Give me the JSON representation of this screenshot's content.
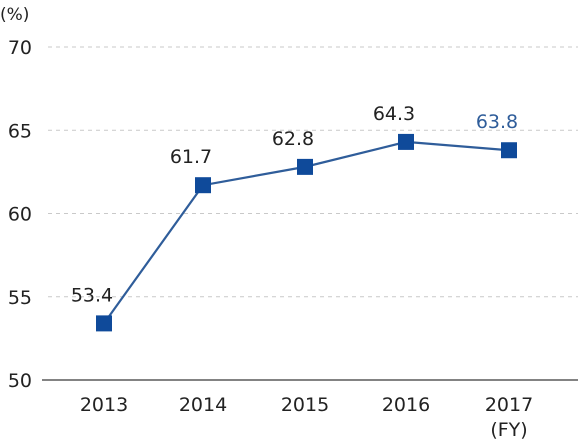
{
  "chart_data": {
    "type": "line",
    "title": "",
    "xlabel": "(FY)",
    "ylabel": "(%)",
    "categories": [
      "2013",
      "2014",
      "2015",
      "2016",
      "2017"
    ],
    "series": [
      {
        "values": [
          53.4,
          61.7,
          62.8,
          64.3,
          63.8
        ],
        "labels": [
          "53.4",
          "61.7",
          "62.8",
          "64.3",
          "63.8"
        ]
      }
    ],
    "ylim": [
      50,
      70
    ],
    "yticks": [
      50,
      55,
      60,
      65,
      70
    ],
    "ytick_labels": [
      "50",
      "55",
      "60",
      "65",
      "70"
    ],
    "grid": true,
    "grid_style": "dashed",
    "highlight_index": 4,
    "colors": {
      "line": "#2f5d9a",
      "marker": "#0f4a9a",
      "highlight_label": "#2f5d9a",
      "grid": "#c9c9c9",
      "text": "#222222"
    }
  }
}
